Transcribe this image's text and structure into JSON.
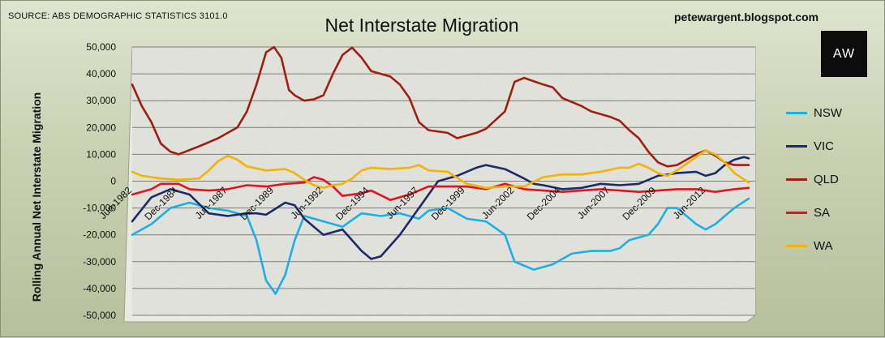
{
  "header": {
    "source": "SOURCE: ABS DEMOGRAPHIC STATISTICS 3101.0",
    "site": "petewargent.blogspot.com",
    "logo_text": "AW"
  },
  "chart_data": {
    "type": "line",
    "title": "Net Interstate Migration",
    "xlabel": "",
    "ylabel": "Rolling Annual Net Interstate Migration",
    "ylim": [
      -50000,
      50000
    ],
    "y_ticks": [
      50000,
      40000,
      30000,
      20000,
      10000,
      0,
      -10000,
      -20000,
      -30000,
      -40000,
      -50000
    ],
    "y_tick_labels": [
      "50,000",
      "40,000",
      "30,000",
      "20,000",
      "10,000",
      "0",
      "-10,000",
      "-20,000",
      "-30,000",
      "-40,000",
      "-50,000"
    ],
    "x_range": [
      1982.5,
      2014.75
    ],
    "x_ticks": [
      1982.5,
      1984.917,
      1987.5,
      1989.917,
      1992.5,
      1994.917,
      1997.5,
      1999.917,
      2002.5,
      2004.917,
      2007.5,
      2009.917,
      2012.5
    ],
    "x_tick_labels": [
      "Jun-1982",
      "Dec-1984",
      "Jun-1987",
      "Dec-1989",
      "Jun-1992",
      "Dec-1994",
      "Jun-1997",
      "Dec-1999",
      "Jun-2002",
      "Dec-2004",
      "Jun-2007",
      "Dec-2009",
      "Jun-2012"
    ],
    "grid": true,
    "legend_position": "right",
    "series": [
      {
        "name": "NSW",
        "color": "#1ab0e6",
        "points": [
          [
            1982.5,
            -20000
          ],
          [
            1983.5,
            -16000
          ],
          [
            1984.5,
            -10000
          ],
          [
            1985.5,
            -8000
          ],
          [
            1986.5,
            -10000
          ],
          [
            1987.5,
            -11000
          ],
          [
            1988.5,
            -13000
          ],
          [
            1989.0,
            -22000
          ],
          [
            1989.5,
            -37000
          ],
          [
            1990.0,
            -42000
          ],
          [
            1990.5,
            -35000
          ],
          [
            1991.0,
            -22000
          ],
          [
            1991.5,
            -13000
          ],
          [
            1992.5,
            -15000
          ],
          [
            1993.5,
            -17000
          ],
          [
            1994.5,
            -12000
          ],
          [
            1995.5,
            -13000
          ],
          [
            1996.5,
            -12000
          ],
          [
            1997.5,
            -14000
          ],
          [
            1998.0,
            -11000
          ],
          [
            1999.0,
            -10000
          ],
          [
            2000.0,
            -14000
          ],
          [
            2001.0,
            -15000
          ],
          [
            2002.0,
            -20000
          ],
          [
            2002.5,
            -30000
          ],
          [
            2003.5,
            -33000
          ],
          [
            2004.5,
            -31000
          ],
          [
            2005.5,
            -27000
          ],
          [
            2006.5,
            -26000
          ],
          [
            2007.5,
            -26000
          ],
          [
            2008.0,
            -25000
          ],
          [
            2008.5,
            -22000
          ],
          [
            2009.5,
            -20000
          ],
          [
            2010.0,
            -16000
          ],
          [
            2010.5,
            -10000
          ],
          [
            2011.0,
            -10000
          ],
          [
            2011.5,
            -13000
          ],
          [
            2012.0,
            -16000
          ],
          [
            2012.5,
            -18000
          ],
          [
            2013.0,
            -16000
          ],
          [
            2013.5,
            -13000
          ],
          [
            2014.0,
            -10000
          ],
          [
            2014.75,
            -6500
          ]
        ]
      },
      {
        "name": "VIC",
        "color": "#1b2a6b",
        "points": [
          [
            1982.5,
            -15000
          ],
          [
            1983.5,
            -6000
          ],
          [
            1984.5,
            -3000
          ],
          [
            1985.5,
            -5000
          ],
          [
            1986.5,
            -12000
          ],
          [
            1987.5,
            -13000
          ],
          [
            1988.5,
            -12000
          ],
          [
            1989.0,
            -12000
          ],
          [
            1989.5,
            -12500
          ],
          [
            1990.5,
            -8000
          ],
          [
            1991.0,
            -9000
          ],
          [
            1991.5,
            -14000
          ],
          [
            1992.5,
            -20000
          ],
          [
            1993.5,
            -18000
          ],
          [
            1994.5,
            -26000
          ],
          [
            1995.0,
            -29000
          ],
          [
            1995.5,
            -28000
          ],
          [
            1996.5,
            -20000
          ],
          [
            1997.5,
            -10000
          ],
          [
            1998.5,
            0
          ],
          [
            1999.5,
            2000
          ],
          [
            2000.5,
            5000
          ],
          [
            2001.0,
            6000
          ],
          [
            2002.0,
            4500
          ],
          [
            2003.0,
            1000
          ],
          [
            2003.5,
            -1000
          ],
          [
            2004.0,
            -1500
          ],
          [
            2005.0,
            -3000
          ],
          [
            2006.0,
            -2500
          ],
          [
            2007.0,
            -1000
          ],
          [
            2008.0,
            -1500
          ],
          [
            2009.0,
            -1000
          ],
          [
            2010.0,
            2000
          ],
          [
            2011.0,
            3000
          ],
          [
            2012.0,
            3500
          ],
          [
            2012.5,
            2000
          ],
          [
            2013.0,
            3000
          ],
          [
            2013.5,
            6000
          ],
          [
            2014.0,
            8000
          ],
          [
            2014.5,
            9000
          ],
          [
            2014.75,
            8500
          ]
        ]
      },
      {
        "name": "QLD",
        "color": "#a01e10",
        "points": [
          [
            1982.5,
            36000
          ],
          [
            1983.0,
            28000
          ],
          [
            1983.5,
            22000
          ],
          [
            1984.0,
            14000
          ],
          [
            1984.5,
            11000
          ],
          [
            1984.917,
            10000
          ],
          [
            1986.0,
            13000
          ],
          [
            1987.0,
            16000
          ],
          [
            1988.0,
            20000
          ],
          [
            1988.5,
            26000
          ],
          [
            1989.0,
            36000
          ],
          [
            1989.5,
            48000
          ],
          [
            1989.917,
            50000
          ],
          [
            1990.3,
            46000
          ],
          [
            1990.7,
            34000
          ],
          [
            1991.0,
            32000
          ],
          [
            1991.5,
            30000
          ],
          [
            1992.0,
            30500
          ],
          [
            1992.5,
            32000
          ],
          [
            1993.0,
            40000
          ],
          [
            1993.5,
            47000
          ],
          [
            1994.0,
            49800
          ],
          [
            1994.5,
            46000
          ],
          [
            1995.0,
            41000
          ],
          [
            1995.5,
            40000
          ],
          [
            1996.0,
            39000
          ],
          [
            1996.5,
            36000
          ],
          [
            1997.0,
            31000
          ],
          [
            1997.5,
            22000
          ],
          [
            1998.0,
            19000
          ],
          [
            1999.0,
            18000
          ],
          [
            1999.5,
            16000
          ],
          [
            2000.5,
            18000
          ],
          [
            2001.0,
            19500
          ],
          [
            2002.0,
            26000
          ],
          [
            2002.5,
            37000
          ],
          [
            2003.0,
            38500
          ],
          [
            2004.0,
            36000
          ],
          [
            2004.5,
            35000
          ],
          [
            2005.0,
            31000
          ],
          [
            2006.0,
            28000
          ],
          [
            2006.5,
            26000
          ],
          [
            2007.5,
            24000
          ],
          [
            2008.0,
            22500
          ],
          [
            2008.5,
            19000
          ],
          [
            2009.0,
            16000
          ],
          [
            2009.5,
            11000
          ],
          [
            2010.0,
            7000
          ],
          [
            2010.5,
            5500
          ],
          [
            2011.0,
            6000
          ],
          [
            2011.5,
            8000
          ],
          [
            2012.0,
            10000
          ],
          [
            2012.5,
            11500
          ],
          [
            2013.0,
            9500
          ],
          [
            2013.5,
            7000
          ],
          [
            2014.0,
            6000
          ],
          [
            2014.75,
            6000
          ]
        ]
      },
      {
        "name": "SA",
        "color": "#e0141e",
        "points": [
          [
            1982.5,
            -5000
          ],
          [
            1983.5,
            -3000
          ],
          [
            1984.0,
            -1000
          ],
          [
            1984.917,
            -1000
          ],
          [
            1985.5,
            -3000
          ],
          [
            1986.5,
            -3500
          ],
          [
            1987.5,
            -3000
          ],
          [
            1988.5,
            -1500
          ],
          [
            1989.5,
            -2000
          ],
          [
            1990.5,
            -1000
          ],
          [
            1991.5,
            -500
          ],
          [
            1992.0,
            1500
          ],
          [
            1992.5,
            500
          ],
          [
            1993.0,
            -2000
          ],
          [
            1993.5,
            -5500
          ],
          [
            1994.0,
            -5000
          ],
          [
            1994.5,
            -4500
          ],
          [
            1995.0,
            -3500
          ],
          [
            1996.0,
            -7000
          ],
          [
            1997.0,
            -5000
          ],
          [
            1998.0,
            -2000
          ],
          [
            1999.0,
            -2000
          ],
          [
            2000.0,
            -2000
          ],
          [
            2001.0,
            -3000
          ],
          [
            2002.0,
            -1000
          ],
          [
            2003.0,
            -3000
          ],
          [
            2004.0,
            -3500
          ],
          [
            2005.0,
            -4000
          ],
          [
            2006.0,
            -3500
          ],
          [
            2007.0,
            -3000
          ],
          [
            2008.0,
            -3500
          ],
          [
            2009.0,
            -4000
          ],
          [
            2010.0,
            -3500
          ],
          [
            2011.0,
            -3000
          ],
          [
            2012.0,
            -3000
          ],
          [
            2013.0,
            -4000
          ],
          [
            2014.0,
            -3000
          ],
          [
            2014.75,
            -2500
          ]
        ]
      },
      {
        "name": "WA",
        "color": "#f2b400",
        "points": [
          [
            1982.5,
            3500
          ],
          [
            1983.0,
            2000
          ],
          [
            1984.0,
            1000
          ],
          [
            1985.0,
            500
          ],
          [
            1986.0,
            1000
          ],
          [
            1986.5,
            4000
          ],
          [
            1987.0,
            7500
          ],
          [
            1987.5,
            9500
          ],
          [
            1988.0,
            8000
          ],
          [
            1988.5,
            5500
          ],
          [
            1989.5,
            4000
          ],
          [
            1990.5,
            4500
          ],
          [
            1991.0,
            3000
          ],
          [
            1991.5,
            500
          ],
          [
            1992.0,
            -1500
          ],
          [
            1992.5,
            -2500
          ],
          [
            1993.0,
            -1500
          ],
          [
            1993.5,
            -1000
          ],
          [
            1994.0,
            1000
          ],
          [
            1994.5,
            4000
          ],
          [
            1995.0,
            5000
          ],
          [
            1996.0,
            4500
          ],
          [
            1997.0,
            5000
          ],
          [
            1997.5,
            6000
          ],
          [
            1998.0,
            4000
          ],
          [
            1999.0,
            3500
          ],
          [
            2000.0,
            -1000
          ],
          [
            2001.0,
            -2500
          ],
          [
            2002.0,
            -2000
          ],
          [
            2003.0,
            -2000
          ],
          [
            2004.0,
            1500
          ],
          [
            2005.0,
            2500
          ],
          [
            2006.0,
            2500
          ],
          [
            2007.0,
            3500
          ],
          [
            2008.0,
            5000
          ],
          [
            2008.5,
            5000
          ],
          [
            2009.0,
            6500
          ],
          [
            2009.5,
            5000
          ],
          [
            2010.0,
            3000
          ],
          [
            2010.5,
            2000
          ],
          [
            2011.0,
            4000
          ],
          [
            2012.0,
            9000
          ],
          [
            2012.5,
            11500
          ],
          [
            2013.0,
            10000
          ],
          [
            2013.5,
            7000
          ],
          [
            2014.0,
            3000
          ],
          [
            2014.75,
            -500
          ]
        ]
      }
    ]
  }
}
